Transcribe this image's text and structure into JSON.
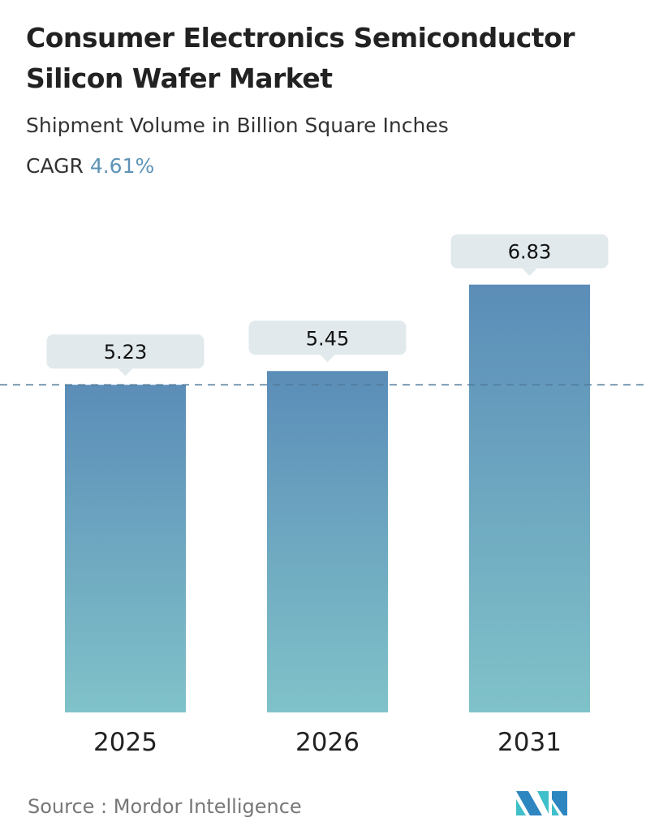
{
  "title_line1": "Consumer Electronics Semiconductor",
  "title_line2": "Silicon Wafer Market",
  "subtitle": "Shipment Volume in Billion Square Inches",
  "cagr_label": "CAGR",
  "cagr_value": "4.61%",
  "source": "Source :  Mordor Intelligence",
  "colors": {
    "bar_top": "#5b8db8",
    "bar_bottom": "#80c2c9",
    "label_box": "#e1e9ec",
    "dashed_line": "#4f7a9a",
    "cagr": "#5e93b6"
  },
  "chart_data": {
    "type": "bar",
    "categories": [
      "2025",
      "2026",
      "2031"
    ],
    "values": [
      5.23,
      5.45,
      6.83
    ],
    "data_labels": [
      "5.23",
      "5.45",
      "6.83"
    ],
    "reference_line": {
      "value": 5.23,
      "style": "dashed"
    },
    "ylim": [
      0,
      7
    ],
    "grid": false
  }
}
